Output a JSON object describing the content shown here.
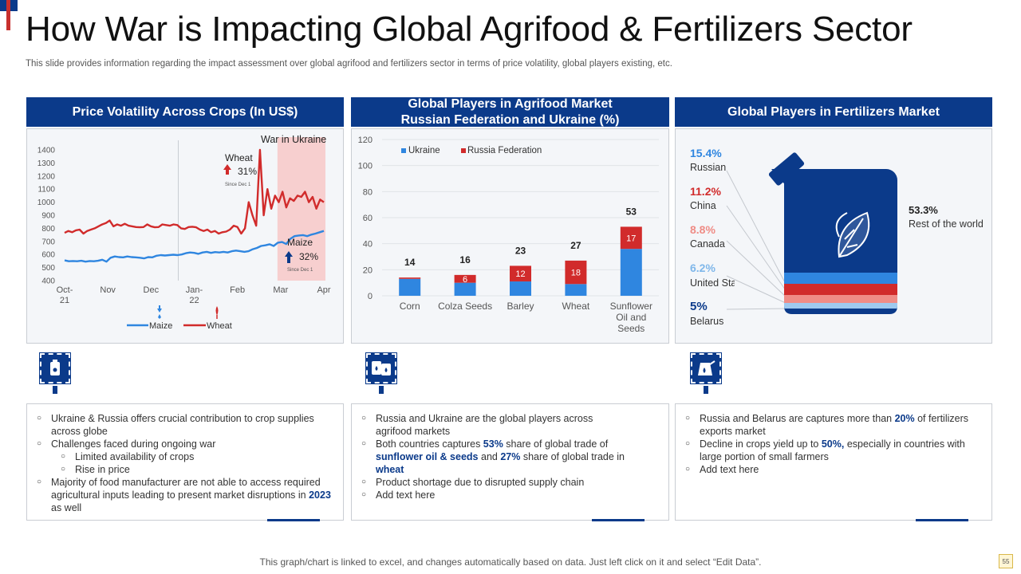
{
  "header": {
    "title": "How War is Impacting Global Agrifood & Fertilizers Sector",
    "subtitle": "This slide provides information regarding the impact assessment over global agrifood and fertilizers sector in terms of price volatility,  global players existing, etc."
  },
  "panels": {
    "price": {
      "title": "Price Volatility Across Crops (In US$)"
    },
    "agrifood": {
      "title_line1": "Global Players in Agrifood Market",
      "title_line2": "Russian Federation and Ukraine (%)"
    },
    "fertilizers": {
      "title": "Global Players in Fertilizers Market"
    }
  },
  "colors": {
    "navy": "#0b3a8a",
    "ukraine": "#2f86e0",
    "russia": "#d12b2b",
    "light_red": "#f7c6c6"
  },
  "chart_data": [
    {
      "type": "line",
      "title": "Price Volatility Across Crops (In US$)",
      "x_ticks": [
        "Oct-\n21",
        "Nov",
        "Dec",
        "Jan-\n22",
        "Feb",
        "Mar",
        "Apr"
      ],
      "ylim": [
        400,
        1400
      ],
      "y_ticks": [
        1400,
        1300,
        1200,
        1100,
        1000,
        900,
        800,
        700,
        600,
        500,
        400
      ],
      "series": [
        {
          "name": "Maize",
          "color": "#2f86e0",
          "values": [
            555,
            548,
            550,
            548,
            552,
            545,
            550,
            548,
            552,
            560,
            545,
            575,
            585,
            580,
            578,
            585,
            580,
            578,
            575,
            570,
            580,
            578,
            590,
            595,
            592,
            595,
            598,
            595,
            600,
            610,
            615,
            612,
            605,
            615,
            620,
            612,
            618,
            615,
            620,
            615,
            625,
            630,
            625,
            620,
            625,
            640,
            650,
            665,
            670,
            678,
            665,
            690,
            695,
            680,
            720,
            740,
            745,
            748,
            740,
            752,
            760,
            770,
            780
          ]
        },
        {
          "name": "Wheat",
          "color": "#d12b2b",
          "values": [
            765,
            780,
            770,
            785,
            790,
            760,
            780,
            790,
            800,
            815,
            830,
            840,
            860,
            815,
            830,
            820,
            835,
            820,
            815,
            810,
            808,
            810,
            830,
            815,
            808,
            810,
            830,
            825,
            820,
            830,
            825,
            800,
            795,
            810,
            812,
            808,
            790,
            780,
            790,
            770,
            780,
            760,
            770,
            775,
            790,
            820,
            810,
            760,
            800,
            1000,
            900,
            820,
            1400,
            900,
            1100,
            950,
            1050,
            1000,
            1080,
            960,
            1030,
            1010,
            1050,
            1040,
            1080,
            1000,
            1040,
            950,
            1020,
            1000
          ]
        }
      ],
      "annotations": {
        "war_label": "War in Ukraine",
        "wheat_label": "Wheat",
        "wheat_change": "31%",
        "wheat_since": "Since Dec 1",
        "maize_label": "Maize",
        "maize_change": "32%",
        "maize_since": "Since Dec 1"
      },
      "legend": [
        "Maize",
        "Wheat"
      ]
    },
    {
      "type": "bar",
      "stacked": true,
      "title": "Global Players in Agrifood Market Russian Federation and Ukraine (%)",
      "categories": [
        "Corn",
        "Colza Seeds",
        "Barley",
        "Wheat",
        "Sunflower Oil and Seeds"
      ],
      "category_lines": [
        [
          "Corn"
        ],
        [
          "Colza Seeds"
        ],
        [
          "Barley"
        ],
        [
          "Wheat"
        ],
        [
          "Sunflower",
          "Oil and",
          "Seeds"
        ]
      ],
      "series": [
        {
          "name": "Ukraine",
          "color": "#2f86e0",
          "values": [
            13,
            10,
            11,
            9,
            36
          ]
        },
        {
          "name": "Russia Federation",
          "color": "#d12b2b",
          "values": [
            1,
            6,
            12,
            18,
            17
          ]
        }
      ],
      "segment_labels": {
        "Ukraine": [
          "",
          "",
          "",
          "",
          ""
        ],
        "Russia Federation": [
          "",
          "6",
          "12",
          "18",
          "17"
        ]
      },
      "totals": [
        14,
        16,
        23,
        27,
        53
      ],
      "ylim": [
        0,
        120
      ],
      "y_ticks": [
        0,
        20,
        40,
        60,
        80,
        100,
        120
      ]
    },
    {
      "type": "pie",
      "title": "Global Players in Fertilizers Market",
      "categories": [
        "Russian",
        "China",
        "Canada",
        "United States",
        "Belarus",
        "Rest of the world"
      ],
      "values": [
        15.4,
        11.2,
        8.8,
        6.2,
        5,
        53.3
      ],
      "labels": [
        "15.4%",
        "11.2%",
        "8.8%",
        "6.2%",
        "5%",
        "53.3%"
      ],
      "colors": [
        "#2f86e0",
        "#d12b2b",
        "#ef8c86",
        "#9ec9ef",
        "#0b3a8a",
        "#0b3a8a"
      ]
    }
  ],
  "notes": {
    "left": {
      "b1": "Ukraine & Russia offers crucial contribution to crop supplies across globe",
      "b2": "Challenges faced during ongoing war",
      "s1": "Limited availability of crops",
      "s2": "Rise in price",
      "b3_pre": "Majority of food manufacturer  are not able to access required agricultural inputs leading to present market disruptions in ",
      "b3_hl": "2023",
      "b3_post": " as well"
    },
    "middle": {
      "b1": "Russia and Ukraine are the global players across agrifood markets",
      "b2_a": "Both countries captures ",
      "b2_b": "53%",
      "b2_c": " share of global trade of ",
      "b2_d": "sunflower oil & seeds",
      "b2_e": " and ",
      "b2_f": "27%",
      "b2_g": " share of global trade in ",
      "b2_h": "wheat",
      "b3": "Product shortage due to disrupted supply chain",
      "b4": "Add text here"
    },
    "right": {
      "b1_a": "Russia and Belarus are captures more than ",
      "b1_b": "20%",
      "b1_c": " of fertilizers exports market",
      "b2_a": "Decline in crops yield up to ",
      "b2_b": "50%,",
      "b2_c": " especially in countries with large portion of small farmers",
      "b3": "Add text here"
    }
  },
  "footer": {
    "text": "This graph/chart is linked to excel,  and changes automatically based on data. Just left click on it and select “Edit Data”.",
    "page": "55"
  }
}
